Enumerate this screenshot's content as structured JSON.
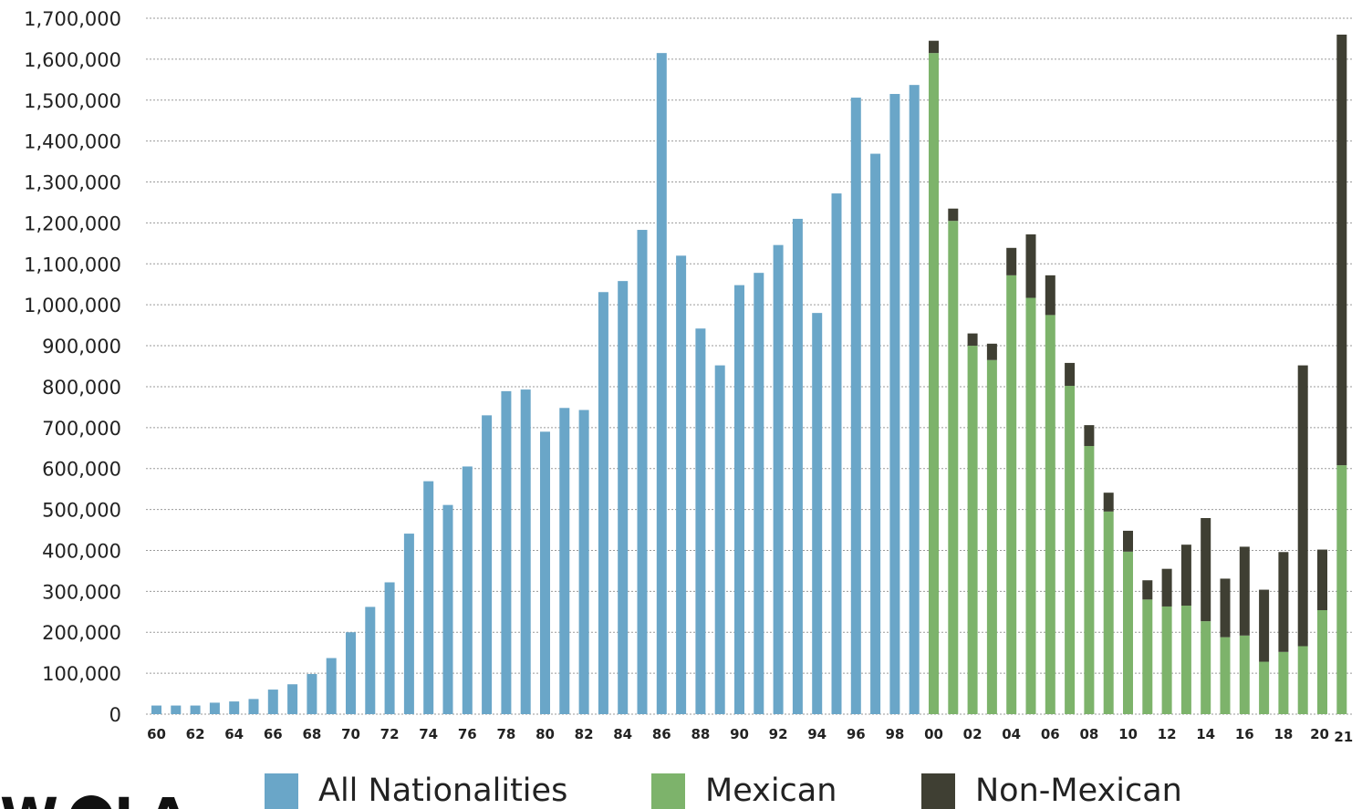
{
  "chart_data": {
    "type": "bar",
    "stacked": true,
    "ylim": [
      0,
      1700000
    ],
    "yticks": [
      "1,700,000",
      "1,600,000",
      "1,500,000",
      "1,400,000",
      "1,300,000",
      "1,200,000",
      "1,100,000",
      "1,000,000",
      "900,000",
      "800,000",
      "700,000",
      "600,000",
      "500,000",
      "400,000",
      "300,000",
      "200,000",
      "100,000",
      "0"
    ],
    "grid": true,
    "xtick_labels": [
      "60",
      "62",
      "64",
      "66",
      "68",
      "70",
      "72",
      "74",
      "76",
      "78",
      "80",
      "82",
      "84",
      "86",
      "88",
      "90",
      "92",
      "94",
      "96",
      "98",
      "00",
      "02",
      "04",
      "06",
      "08",
      "10",
      "12",
      "14",
      "16",
      "18",
      "20",
      "21"
    ],
    "categories": [
      "1960",
      "1961",
      "1962",
      "1963",
      "1964",
      "1965",
      "1966",
      "1967",
      "1968",
      "1969",
      "1970",
      "1971",
      "1972",
      "1973",
      "1974",
      "1975",
      "1976",
      "1977",
      "1978",
      "1979",
      "1980",
      "1981",
      "1982",
      "1983",
      "1984",
      "1985",
      "1986",
      "1987",
      "1988",
      "1989",
      "1990",
      "1991",
      "1992",
      "1993",
      "1994",
      "1995",
      "1996",
      "1997",
      "1998",
      "1999",
      "2000",
      "2001",
      "2002",
      "2003",
      "2004",
      "2005",
      "2006",
      "2007",
      "2008",
      "2009",
      "2010",
      "2011",
      "2012",
      "2013",
      "2014",
      "2015",
      "2016",
      "2017",
      "2018",
      "2019",
      "2020",
      "2021"
    ],
    "series": [
      {
        "name": "All Nationalities",
        "color": "#6aa6c8",
        "values": [
          21000,
          21000,
          21000,
          28000,
          31000,
          37000,
          60000,
          73000,
          98000,
          137000,
          200000,
          262000,
          322000,
          441000,
          569000,
          511000,
          605000,
          730000,
          789000,
          793000,
          690000,
          748000,
          743000,
          1031000,
          1058000,
          1183000,
          1615000,
          1120000,
          942000,
          852000,
          1048000,
          1078000,
          1146000,
          1210000,
          980000,
          1272000,
          1506000,
          1369000,
          1515000,
          1537000,
          0,
          0,
          0,
          0,
          0,
          0,
          0,
          0,
          0,
          0,
          0,
          0,
          0,
          0,
          0,
          0,
          0,
          0,
          0,
          0,
          0,
          0
        ]
      },
      {
        "name": "Mexican",
        "color": "#7db36b",
        "values": [
          0,
          0,
          0,
          0,
          0,
          0,
          0,
          0,
          0,
          0,
          0,
          0,
          0,
          0,
          0,
          0,
          0,
          0,
          0,
          0,
          0,
          0,
          0,
          0,
          0,
          0,
          0,
          0,
          0,
          0,
          0,
          0,
          0,
          0,
          0,
          0,
          0,
          0,
          0,
          0,
          1615000,
          1205000,
          900000,
          865000,
          1072000,
          1017000,
          975000,
          802000,
          655000,
          495000,
          397000,
          280000,
          263000,
          265000,
          227000,
          188000,
          192000,
          128000,
          152000,
          166000,
          254000,
          608000
        ]
      },
      {
        "name": "Non-Mexican",
        "color": "#3f3f33",
        "values": [
          0,
          0,
          0,
          0,
          0,
          0,
          0,
          0,
          0,
          0,
          0,
          0,
          0,
          0,
          0,
          0,
          0,
          0,
          0,
          0,
          0,
          0,
          0,
          0,
          0,
          0,
          0,
          0,
          0,
          0,
          0,
          0,
          0,
          0,
          0,
          0,
          0,
          0,
          0,
          0,
          30000,
          30000,
          30000,
          40000,
          67000,
          155000,
          97000,
          56000,
          51000,
          46000,
          51000,
          47000,
          92000,
          149000,
          252000,
          143000,
          217000,
          176000,
          244000,
          686000,
          148000,
          1052000
        ]
      }
    ],
    "legend": {
      "placement": "bottom",
      "items": [
        "All Nationalities",
        "Mexican",
        "Non-Mexican"
      ]
    }
  },
  "logo": {
    "text": "WOLA"
  }
}
